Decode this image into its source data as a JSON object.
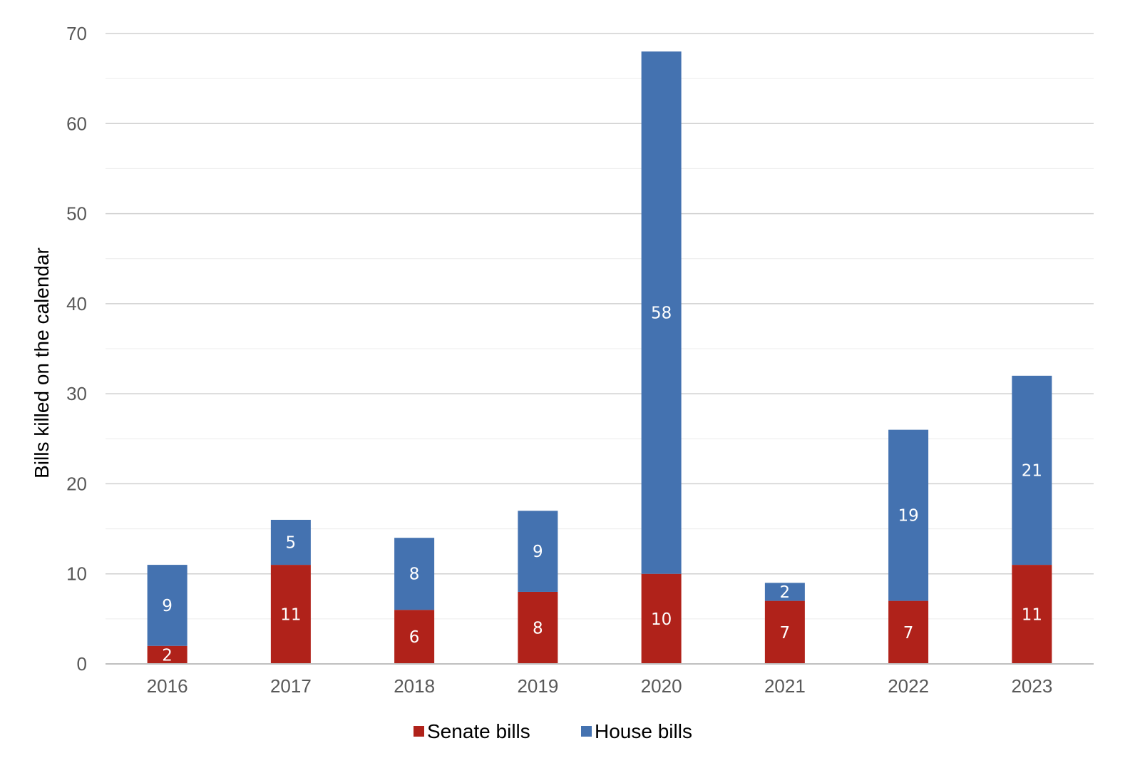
{
  "chart_data": {
    "type": "bar",
    "stacked": true,
    "categories": [
      "2016",
      "2017",
      "2018",
      "2019",
      "2020",
      "2021",
      "2022",
      "2023"
    ],
    "series": [
      {
        "name": "Senate bills",
        "color": "#b0221a",
        "values": [
          2,
          11,
          6,
          8,
          10,
          7,
          7,
          11
        ]
      },
      {
        "name": "House bills",
        "color": "#4472b0",
        "values": [
          9,
          5,
          8,
          9,
          58,
          2,
          19,
          21
        ]
      }
    ],
    "title": "",
    "xlabel": "",
    "ylabel": "Bills killed on the calendar",
    "ylim": [
      0,
      70
    ],
    "yticks": [
      0,
      10,
      20,
      30,
      40,
      50,
      60,
      70
    ],
    "grid": true,
    "minor_grid": true,
    "data_labels": true,
    "legend_position": "bottom-center"
  }
}
